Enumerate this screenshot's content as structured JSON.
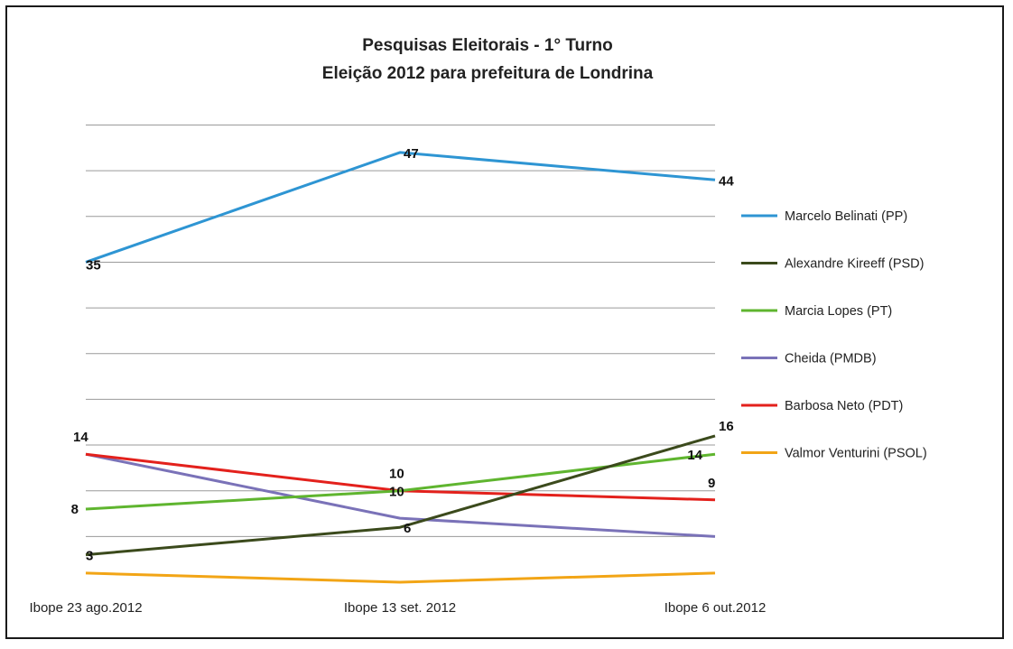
{
  "chart_data": {
    "type": "line",
    "title": "Pesquisas Eleitorais - 1° Turno",
    "subtitle": "Eleição 2012 para prefeitura de Londrina",
    "categories": [
      "Ibope 23 ago.2012",
      "Ibope 13 set. 2012",
      "Ibope  6 out.2012"
    ],
    "ylim": [
      0,
      50
    ],
    "grid": true,
    "legend_position": "right",
    "series": [
      {
        "name": "Marcelo Belinati (PP)",
        "color": "#2e95d3",
        "values": [
          35,
          47,
          44
        ],
        "labels": [
          "35",
          "47",
          "44"
        ]
      },
      {
        "name": "Alexandre Kireeff (PSD)",
        "color": "#3b4a1c",
        "values": [
          3,
          6,
          16
        ],
        "labels": [
          "3",
          "6",
          "16"
        ]
      },
      {
        "name": "Marcia Lopes (PT)",
        "color": "#5fb52f",
        "values": [
          8,
          10,
          14
        ],
        "labels": [
          "8",
          "10",
          "14"
        ]
      },
      {
        "name": "Cheida (PMDB)",
        "color": "#7a72b8",
        "values": [
          14,
          7,
          5
        ],
        "labels": [
          "14",
          "",
          ""
        ]
      },
      {
        "name": "Barbosa Neto (PDT)",
        "color": "#e3211c",
        "values": [
          14,
          10,
          9
        ],
        "labels": [
          "",
          "10",
          "9"
        ]
      },
      {
        "name": "Valmor Venturini (PSOL)",
        "color": "#f2a516",
        "values": [
          1,
          0,
          1
        ],
        "labels": [
          "",
          "",
          ""
        ]
      }
    ]
  }
}
